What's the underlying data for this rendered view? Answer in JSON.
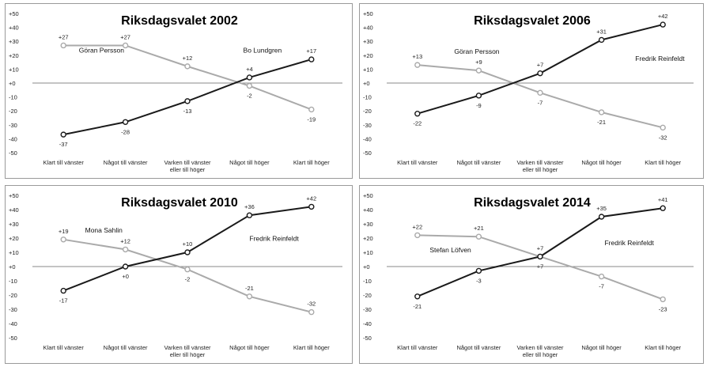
{
  "figure": {
    "series_colors": {
      "dark": "#1a1a1a",
      "light": "#aaaaaa"
    },
    "zero_line_color": "#8a8a8a"
  },
  "chart_data": [
    {
      "type": "line",
      "title": "Riksdagsvalet 2002",
      "ylim": [
        -50,
        50
      ],
      "yticks": [
        "+50",
        "+40",
        "+30",
        "+20",
        "+10",
        "+0",
        "-10",
        "-20",
        "-30",
        "-40",
        "-50"
      ],
      "x": [
        [
          "Klart till vänster"
        ],
        [
          "Något till vänster"
        ],
        [
          "Varken till vänster",
          "eller till höger"
        ],
        [
          "Något till höger"
        ],
        [
          "Klart till höger"
        ]
      ],
      "series": [
        {
          "name": "Göran Persson",
          "color": "light",
          "values": [
            27,
            27,
            12,
            -2,
            -19
          ],
          "labels": [
            "+27",
            "+27",
            "+12",
            "-2",
            "-19"
          ],
          "label_pos": [
            "above",
            "above",
            "above",
            "below",
            "below"
          ]
        },
        {
          "name": "Bo Lundgren",
          "color": "dark",
          "values": [
            -37,
            -28,
            -13,
            4,
            17
          ],
          "labels": [
            "-37",
            "-28",
            "-13",
            "+4",
            "+17"
          ],
          "label_pos": [
            "below",
            "below",
            "below",
            "above",
            "above"
          ]
        }
      ],
      "series_label_anchor": [
        {
          "x": 0.25,
          "y": 22
        },
        {
          "x": 2.9,
          "y": 22
        }
      ]
    },
    {
      "type": "line",
      "title": "Riksdagsvalet 2006",
      "ylim": [
        -50,
        50
      ],
      "yticks": [
        "+50",
        "+40",
        "+30",
        "+20",
        "+10",
        "+0",
        "-10",
        "-20",
        "-30",
        "-40",
        "-50"
      ],
      "x": [
        [
          "Klart till vänster"
        ],
        [
          "Något till vänster"
        ],
        [
          "Varken till vänster",
          "eller till höger"
        ],
        [
          "Något till höger"
        ],
        [
          "Klart till höger"
        ]
      ],
      "series": [
        {
          "name": "Göran Persson",
          "color": "light",
          "values": [
            13,
            9,
            -7,
            -21,
            -32
          ],
          "labels": [
            "+13",
            "+9",
            "-7",
            "-21",
            "-32"
          ],
          "label_pos": [
            "above",
            "above",
            "below",
            "below",
            "below"
          ]
        },
        {
          "name": "Fredrik Reinfeldt",
          "color": "dark",
          "values": [
            -22,
            -9,
            7,
            31,
            42
          ],
          "labels": [
            "-22",
            "-9",
            "+7",
            "+31",
            "+42"
          ],
          "label_pos": [
            "below",
            "below",
            "above",
            "above",
            "above"
          ]
        }
      ],
      "series_label_anchor": [
        {
          "x": 0.6,
          "y": 21
        },
        {
          "x": 3.55,
          "y": 16
        }
      ]
    },
    {
      "type": "line",
      "title": "Riksdagsvalet 2010",
      "ylim": [
        -50,
        50
      ],
      "yticks": [
        "+50",
        "+40",
        "+30",
        "+20",
        "+10",
        "+0",
        "-10",
        "-20",
        "-30",
        "-40",
        "-50"
      ],
      "x": [
        [
          "Klart till vänster"
        ],
        [
          "Något till vänster"
        ],
        [
          "Varken till vänster",
          "eller till höger"
        ],
        [
          "Något till höger"
        ],
        [
          "Klart till höger"
        ]
      ],
      "series": [
        {
          "name": "Mona Sahlin",
          "color": "light",
          "values": [
            19,
            12,
            -2,
            -21,
            -32
          ],
          "labels": [
            "+19",
            "+12",
            "-2",
            "-21",
            "-32"
          ],
          "label_pos": [
            "above",
            "above",
            "below",
            "above",
            "above"
          ]
        },
        {
          "name": "Fredrik Reinfeldt",
          "color": "dark",
          "values": [
            -17,
            0,
            10,
            36,
            42
          ],
          "labels": [
            "-17",
            "+0",
            "+10",
            "+36",
            "+42"
          ],
          "label_pos": [
            "below",
            "below",
            "above",
            "above",
            "above"
          ]
        }
      ],
      "series_label_anchor": [
        {
          "x": 0.35,
          "y": 24
        },
        {
          "x": 3.0,
          "y": 18
        }
      ]
    },
    {
      "type": "line",
      "title": "Riksdagsvalet 2014",
      "ylim": [
        -50,
        50
      ],
      "yticks": [
        "+50",
        "+40",
        "+30",
        "+20",
        "+10",
        "+0",
        "-10",
        "-20",
        "-30",
        "-40",
        "-50"
      ],
      "x": [
        [
          "Klart till vänster"
        ],
        [
          "Något till vänster"
        ],
        [
          "Varken till vänster",
          "eller till höger"
        ],
        [
          "Något till höger"
        ],
        [
          "Klart till höger"
        ]
      ],
      "series": [
        {
          "name": "Stefan Löfven",
          "color": "light",
          "values": [
            22,
            21,
            7,
            -7,
            -23
          ],
          "labels": [
            "+22",
            "+21",
            "+7",
            "-7",
            "-23"
          ],
          "label_pos": [
            "above",
            "above",
            "above",
            "below",
            "below"
          ]
        },
        {
          "name": "Fredrik Reinfeldt",
          "color": "dark",
          "values": [
            -21,
            -3,
            7,
            35,
            41
          ],
          "labels": [
            "-21",
            "-3",
            "+7",
            "+35",
            "+41"
          ],
          "label_pos": [
            "below",
            "below",
            "below",
            "above",
            "above"
          ]
        }
      ],
      "series_label_anchor": [
        {
          "x": 0.2,
          "y": 10
        },
        {
          "x": 3.05,
          "y": 15
        }
      ]
    }
  ]
}
